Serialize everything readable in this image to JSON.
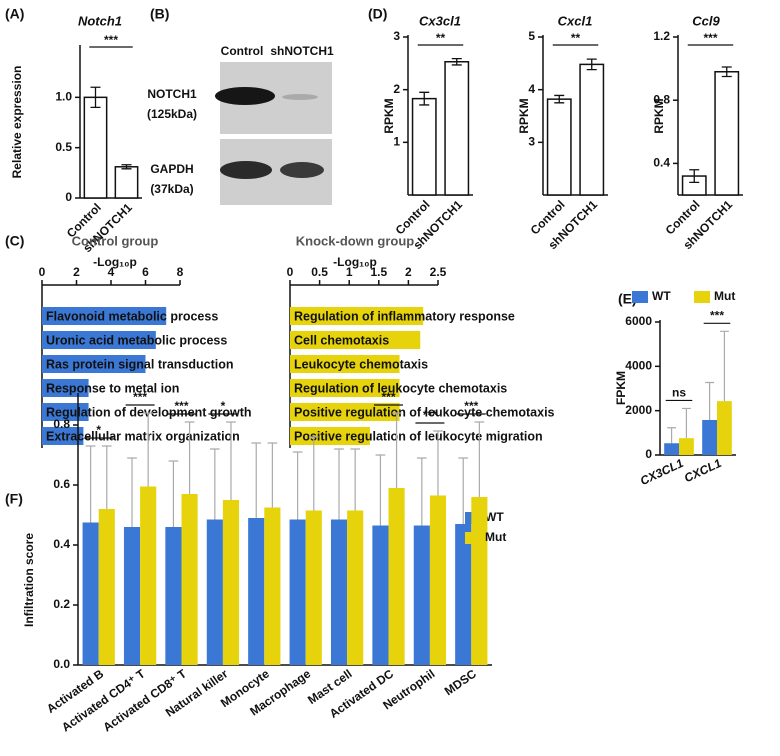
{
  "blot": {
    "panel": "(B)",
    "lanes": [
      "Control",
      "shNOTCH1"
    ],
    "bands": [
      {
        "name": "NOTCH1",
        "size": "(125kDa)"
      },
      {
        "name": "GAPDH",
        "size": "(37kDa)"
      }
    ]
  },
  "chart_data": [
    {
      "panel": "(A)",
      "type": "bar",
      "title": "Notch1",
      "ylabel": "Relative expression",
      "categories": [
        "Control",
        "shNOTCH1"
      ],
      "values": [
        1.0,
        0.31
      ],
      "errors": [
        0.1,
        0.02
      ],
      "ylim": [
        0,
        1.5
      ],
      "yticks": [
        0,
        0.5,
        {
          "value": 1,
          "label": "1.0"
        }
      ],
      "annotations": [
        {
          "text": "***"
        }
      ]
    },
    {
      "panel": "(D)",
      "type": "bar",
      "title": "Cx3cl1",
      "ylabel": "RPKM",
      "categories": [
        "Control",
        "shNOTCH1"
      ],
      "values": [
        1.83,
        2.53
      ],
      "errors": [
        0.12,
        0.06
      ],
      "ylim": [
        0,
        3
      ],
      "yticks": [
        1,
        2,
        3
      ],
      "annotations": [
        {
          "text": "**"
        }
      ]
    },
    {
      "type": "bar",
      "title": "Cxcl1",
      "ylabel": "RPKM",
      "categories": [
        "Control",
        "shNOTCH1"
      ],
      "values": [
        3.82,
        4.48
      ],
      "errors": [
        0.07,
        0.1
      ],
      "ylim": [
        2,
        5
      ],
      "yticks": [
        3,
        4,
        5
      ],
      "annotations": [
        {
          "text": "**"
        }
      ]
    },
    {
      "type": "bar",
      "title": "Ccl9",
      "ylabel": "RPKM",
      "categories": [
        "Control",
        "shNOTCH1"
      ],
      "values": [
        0.32,
        0.98
      ],
      "errors": [
        0.04,
        0.03
      ],
      "ylim": [
        0.2,
        1.2
      ],
      "yticks": [
        0.4,
        0.8,
        1.2
      ],
      "annotations": [
        {
          "text": "***"
        }
      ]
    },
    {
      "panel": "(C)",
      "type": "hbar",
      "title": "Control group",
      "xlabel": "-Log₁₀p",
      "categories": [
        "Flavonoid metabolic process",
        "Uronic acid metabolic process",
        "Ras protein signal transduction",
        "Response to metal ion",
        "Regulation of development growth",
        "Extracellular matrix organization"
      ],
      "values": [
        7.2,
        6.6,
        6.0,
        2.7,
        2.7,
        2.4
      ],
      "color": "#3b78d6",
      "xlim": [
        0,
        8
      ],
      "xticks": [
        0,
        2,
        4,
        6,
        8
      ]
    },
    {
      "type": "hbar",
      "title": "Knock-down group",
      "xlabel": "-Log₁₀p",
      "categories": [
        "Regulation of inflammatory response",
        "Cell chemotaxis",
        "Leukocyte chemotaxis",
        "Regulation of leukocyte chemotaxis",
        "Positive regulation of leukocyte chemotaxis",
        "Positive regulation of leukocyte migration"
      ],
      "values": [
        2.25,
        2.2,
        1.85,
        1.85,
        1.85,
        1.35
      ],
      "color": "#e6d30c",
      "xlim": [
        0,
        2.5
      ],
      "xticks": [
        0,
        0.5,
        1,
        1.5,
        2,
        2.5
      ]
    },
    {
      "panel": "(E)",
      "type": "bar",
      "ylabel": "FPKM",
      "categories": [
        "CX3CL1",
        "CXCL1"
      ],
      "series": [
        {
          "name": "WT",
          "color": "#3b78d6",
          "values": [
            530,
            1580
          ],
          "errors": [
            700,
            1690
          ]
        },
        {
          "name": "Mut",
          "color": "#e6d30c",
          "values": [
            760,
            2430
          ],
          "errors": [
            1340,
            3150
          ]
        }
      ],
      "ylim": [
        0,
        6000
      ],
      "yticks": [
        0,
        2000,
        4000,
        6000
      ],
      "legend": "top",
      "annotations": [
        {
          "category": 0,
          "text": "ns"
        },
        {
          "category": 1,
          "text": "***"
        }
      ]
    },
    {
      "panel": "(F)",
      "type": "bar",
      "ylabel": "Infiltration score",
      "categories": [
        "Activated B",
        "Activated CD4⁺ T",
        "Activated CD8⁺ T",
        "Natural killer",
        "Monocyte",
        "Macrophage",
        "Mast cell",
        "Activated DC",
        "Neutrophil",
        "MDSC"
      ],
      "series": [
        {
          "name": "WT",
          "color": "#3b78d6",
          "values": [
            0.475,
            0.46,
            0.46,
            0.485,
            0.49,
            0.485,
            0.485,
            0.465,
            0.465,
            0.47
          ],
          "errors": [
            0.255,
            0.23,
            0.22,
            0.235,
            0.25,
            0.225,
            0.235,
            0.235,
            0.225,
            0.22
          ]
        },
        {
          "name": "Mut",
          "color": "#e6d30c",
          "values": [
            0.52,
            0.595,
            0.57,
            0.55,
            0.525,
            0.515,
            0.515,
            0.59,
            0.565,
            0.56
          ],
          "errors": [
            0.21,
            0.245,
            0.24,
            0.26,
            0.215,
            0.245,
            0.205,
            0.25,
            0.215,
            0.25
          ]
        }
      ],
      "ylim": [
        0,
        0.9
      ],
      "yticks": [
        {
          "value": 0,
          "label": "0.0"
        },
        0.2,
        0.4,
        0.6,
        0.8
      ],
      "legend": "right",
      "annotations": [
        {
          "category": 0,
          "text": "*"
        },
        {
          "category": 1,
          "text": "***"
        },
        {
          "category": 2,
          "text": "***"
        },
        {
          "category": 3,
          "text": "*"
        },
        {
          "category": 7,
          "text": "***"
        },
        {
          "category": 8,
          "text": "***"
        },
        {
          "category": 9,
          "text": "***"
        }
      ]
    }
  ]
}
